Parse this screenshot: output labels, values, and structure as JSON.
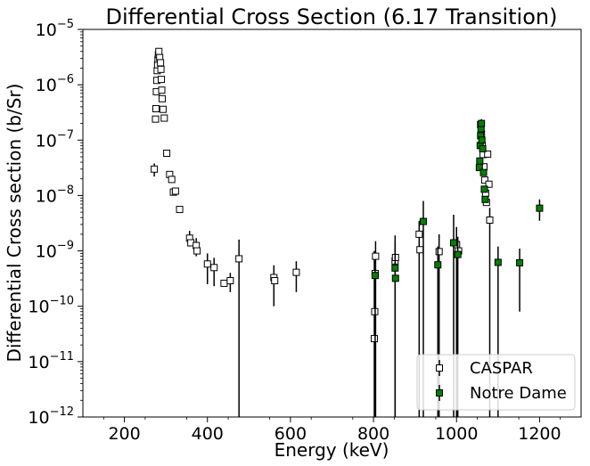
{
  "chart_data": {
    "type": "scatter",
    "title": "Differential Cross Section (6.17 Transition)",
    "xlabel": "Energy (keV)",
    "ylabel": "Differential Cross section (b/Sr)",
    "xlim": [
      100,
      1300
    ],
    "ylim": [
      1e-12,
      1e-05
    ],
    "yscale": "log",
    "x_ticks": [
      200,
      400,
      600,
      800,
      1000,
      1200
    ],
    "x_tick_labels": [
      "200",
      "400",
      "600",
      "800",
      "1000",
      "1200"
    ],
    "y_ticks": [
      1e-12,
      1e-11,
      1e-10,
      1e-09,
      1e-08,
      1e-07,
      1e-06,
      1e-05
    ],
    "y_tick_labels": [
      {
        "base": "10",
        "exp": "−12"
      },
      {
        "base": "10",
        "exp": "−11"
      },
      {
        "base": "10",
        "exp": "−10"
      },
      {
        "base": "10",
        "exp": "−9"
      },
      {
        "base": "10",
        "exp": "−8"
      },
      {
        "base": "10",
        "exp": "−7"
      },
      {
        "base": "10",
        "exp": "−6"
      },
      {
        "base": "10",
        "exp": "−5"
      }
    ],
    "grid": false,
    "legend_position": "lower-right",
    "series": [
      {
        "name": "CASPAR",
        "marker": "square-open",
        "color": "#000000",
        "face": "#ffffff",
        "points": [
          {
            "x": 272,
            "y": 3e-08,
            "lo": 2.2e-08,
            "hi": 3.8e-08
          },
          {
            "x": 275,
            "y": 2.4e-07
          },
          {
            "x": 276,
            "y": 3.7e-07
          },
          {
            "x": 277,
            "y": 7.5e-07
          },
          {
            "x": 278,
            "y": 1.2e-06
          },
          {
            "x": 279,
            "y": 1.8e-06
          },
          {
            "x": 280,
            "y": 2.3e-06
          },
          {
            "x": 281,
            "y": 2.9e-06
          },
          {
            "x": 282,
            "y": 3.5e-06
          },
          {
            "x": 283,
            "y": 4e-06,
            "lo": 3.5e-06,
            "hi": 4.6e-06
          },
          {
            "x": 285,
            "y": 3.1e-06
          },
          {
            "x": 287,
            "y": 2.5e-06
          },
          {
            "x": 288,
            "y": 1.9e-06
          },
          {
            "x": 289,
            "y": 1.25e-06
          },
          {
            "x": 290,
            "y": 8e-07
          },
          {
            "x": 291,
            "y": 5.6e-07
          },
          {
            "x": 293,
            "y": 3.6e-07
          },
          {
            "x": 296,
            "y": 2.5e-07
          },
          {
            "x": 302,
            "y": 5.8e-08
          },
          {
            "x": 309,
            "y": 2.4e-08
          },
          {
            "x": 314,
            "y": 1.95e-08
          },
          {
            "x": 318,
            "y": 1.15e-08
          },
          {
            "x": 323,
            "y": 1.2e-08
          },
          {
            "x": 333,
            "y": 5.6e-09
          },
          {
            "x": 357,
            "y": 1.7e-09,
            "lo": 1.2e-09,
            "hi": 2.3e-09
          },
          {
            "x": 360,
            "y": 1.4e-09
          },
          {
            "x": 373,
            "y": 1.25e-09,
            "lo": 8e-10,
            "hi": 1.7e-09
          },
          {
            "x": 375,
            "y": 1e-09
          },
          {
            "x": 400,
            "y": 5.8e-10,
            "lo": 2.5e-10,
            "hi": 9e-10
          },
          {
            "x": 416,
            "y": 5e-10,
            "lo": 2.3e-10,
            "hi": 7.5e-10
          },
          {
            "x": 440,
            "y": 2.6e-10
          },
          {
            "x": 455,
            "y": 2.9e-10,
            "lo": 1.8e-10,
            "hi": 4e-10
          },
          {
            "x": 476,
            "y": 7.2e-10,
            "lo": 1e-12,
            "hi": 1.6e-09
          },
          {
            "x": 560,
            "y": 3.3e-10,
            "lo": 1e-10,
            "hi": 5.5e-10
          },
          {
            "x": 562,
            "y": 2.9e-10
          },
          {
            "x": 614,
            "y": 4.1e-10,
            "lo": 1.8e-10,
            "hi": 6.5e-10
          },
          {
            "x": 802,
            "y": 2.6e-11,
            "lo": 1e-12,
            "hi": 1e-09
          },
          {
            "x": 803,
            "y": 8e-11
          },
          {
            "x": 804,
            "y": 3.9e-10
          },
          {
            "x": 805,
            "y": 8e-10,
            "lo": 1e-12,
            "hi": 1.5e-09
          },
          {
            "x": 852,
            "y": 6.6e-10,
            "lo": 1e-12,
            "hi": 1.9e-09
          },
          {
            "x": 853,
            "y": 7.6e-10
          },
          {
            "x": 910,
            "y": 2e-09,
            "lo": 1e-12,
            "hi": 3.5e-09
          },
          {
            "x": 912,
            "y": 1.05e-09
          },
          {
            "x": 958,
            "y": 9.7e-10,
            "lo": 1e-12,
            "hi": 2e-09
          },
          {
            "x": 1000,
            "y": 1.3e-09,
            "lo": 1e-12,
            "hi": 2.7e-09
          },
          {
            "x": 1005,
            "y": 1e-09
          },
          {
            "x": 1058,
            "y": 1.9e-07
          },
          {
            "x": 1060,
            "y": 1.3e-07
          },
          {
            "x": 1062,
            "y": 8e-08
          },
          {
            "x": 1064,
            "y": 5.5e-08
          },
          {
            "x": 1066,
            "y": 3.3e-08
          },
          {
            "x": 1068,
            "y": 1.9e-08
          },
          {
            "x": 1070,
            "y": 1.1e-08
          },
          {
            "x": 1072,
            "y": 7.5e-09
          },
          {
            "x": 1075,
            "y": 5.6e-08
          },
          {
            "x": 1078,
            "y": 1.6e-08
          },
          {
            "x": 1080,
            "y": 3.6e-09,
            "lo": 1e-12,
            "hi": 6e-09
          }
        ]
      },
      {
        "name": "Notre Dame",
        "marker": "square-filled",
        "color": "#000000",
        "face": "#008000",
        "points": [
          {
            "x": 804,
            "y": 3.6e-10,
            "lo": 1e-12,
            "hi": 6.5e-10
          },
          {
            "x": 852,
            "y": 4.9e-10,
            "lo": 1e-12,
            "hi": 1.5e-09
          },
          {
            "x": 853,
            "y": 3.2e-10
          },
          {
            "x": 920,
            "y": 3.4e-09,
            "lo": 1e-12,
            "hi": 8e-09
          },
          {
            "x": 955,
            "y": 5.6e-10,
            "lo": 1e-12,
            "hi": 1.2e-09
          },
          {
            "x": 993,
            "y": 1.4e-09,
            "lo": 1e-12,
            "hi": 4.5e-09
          },
          {
            "x": 1003,
            "y": 8.6e-10,
            "lo": 1e-12,
            "hi": 1.8e-09
          },
          {
            "x": 1055,
            "y": 3.2e-08
          },
          {
            "x": 1056,
            "y": 4.2e-08
          },
          {
            "x": 1057,
            "y": 8e-08
          },
          {
            "x": 1058,
            "y": 1.2e-07
          },
          {
            "x": 1059,
            "y": 1.6e-07
          },
          {
            "x": 1060,
            "y": 2e-07,
            "lo": 1.5e-07,
            "hi": 2.4e-07
          },
          {
            "x": 1061,
            "y": 1e-07
          },
          {
            "x": 1063,
            "y": 7e-08
          },
          {
            "x": 1065,
            "y": 2.6e-08
          },
          {
            "x": 1067,
            "y": 1.3e-08
          },
          {
            "x": 1069,
            "y": 8.5e-09
          },
          {
            "x": 1100,
            "y": 6.2e-10,
            "lo": 1e-12,
            "hi": 1.2e-09
          },
          {
            "x": 1152,
            "y": 6.1e-10,
            "lo": 8e-11,
            "hi": 1.1e-09
          },
          {
            "x": 1200,
            "y": 5.9e-09,
            "lo": 3.5e-09,
            "hi": 8.5e-09
          }
        ]
      }
    ]
  }
}
